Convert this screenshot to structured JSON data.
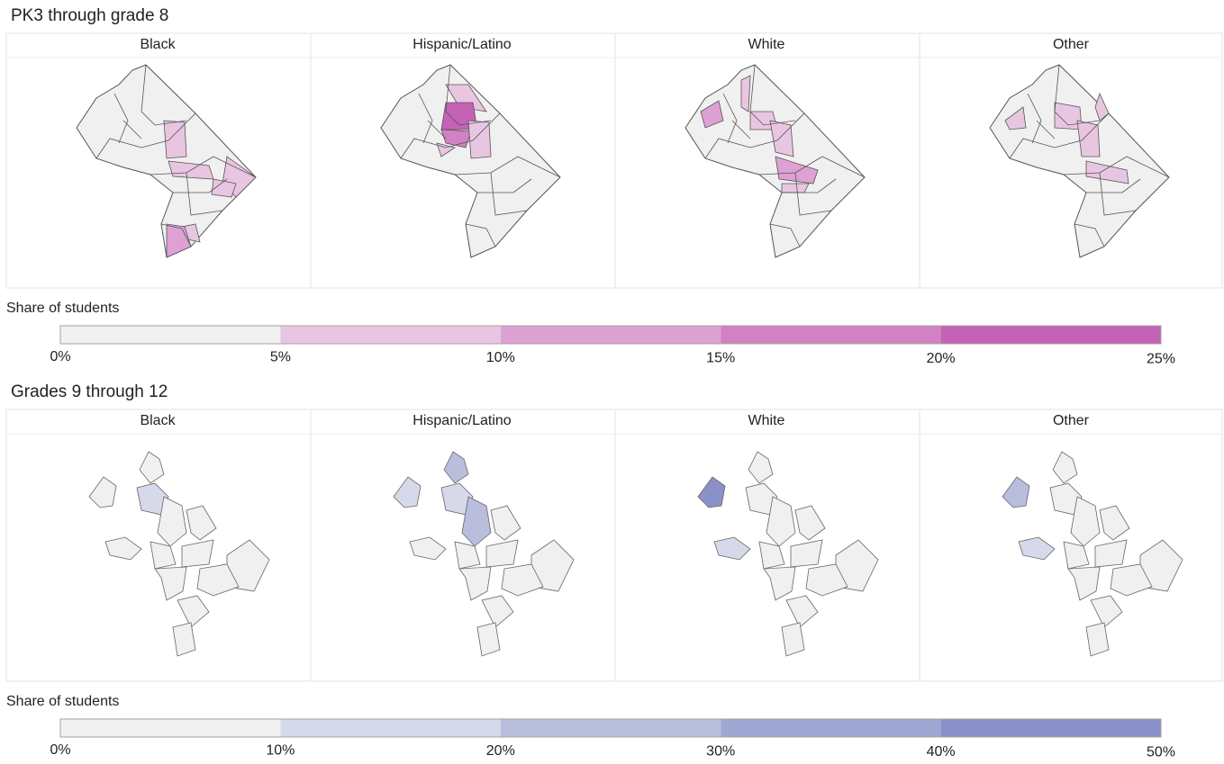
{
  "sections": [
    {
      "title": "PK3 through grade 8",
      "panels": [
        "Black",
        "Hispanic/Latino",
        "White",
        "Other"
      ],
      "legend": {
        "title": "Share of students",
        "lim": [
          0,
          25
        ],
        "ticks": [
          {
            "value": 0,
            "label": "0%"
          },
          {
            "value": 5,
            "label": "5%"
          },
          {
            "value": 10,
            "label": "10%"
          },
          {
            "value": 15,
            "label": "15%"
          },
          {
            "value": 20,
            "label": "20%"
          },
          {
            "value": 25,
            "label": "25%"
          }
        ],
        "colors": [
          "#f0f0f0",
          "#e8c6e1",
          "#dda1d3",
          "#d181c4",
          "#c462b6"
        ]
      }
    },
    {
      "title": "Grades 9 through 12",
      "panels": [
        "Black",
        "Hispanic/Latino",
        "White",
        "Other"
      ],
      "legend": {
        "title": "Share of students",
        "lim": [
          0,
          50
        ],
        "ticks": [
          {
            "value": 0,
            "label": "0%"
          },
          {
            "value": 10,
            "label": "10%"
          },
          {
            "value": 20,
            "label": "20%"
          },
          {
            "value": 30,
            "label": "30%"
          },
          {
            "value": 40,
            "label": "40%"
          },
          {
            "value": 50,
            "label": "50%"
          }
        ],
        "colors": [
          "#f0f0f0",
          "#d6d9e9",
          "#b9bedd",
          "#a0a7d3",
          "#8991c8"
        ]
      }
    }
  ]
}
